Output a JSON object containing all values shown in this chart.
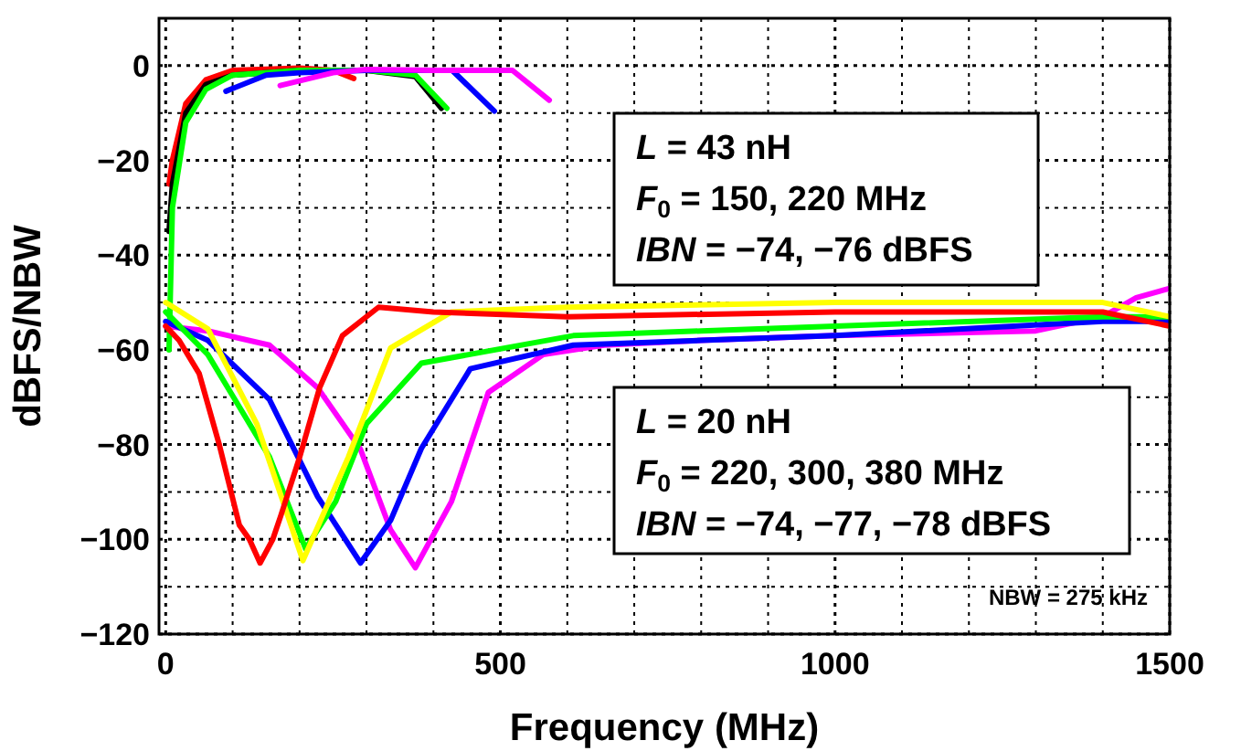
{
  "chart_data": {
    "type": "line",
    "xlabel": "Frequency (MHz)",
    "ylabel": "dBFS/NBW",
    "xlim": [
      -10,
      1500
    ],
    "ylim": [
      -120,
      10
    ],
    "xticks": [
      0,
      {
        "value": 100,
        "label": null
      },
      {
        "value": 200,
        "label": null
      },
      {
        "value": 300,
        "label": null
      },
      {
        "value": 400,
        "label": null
      },
      500,
      {
        "value": 600,
        "label": null
      },
      {
        "value": 700,
        "label": null
      },
      {
        "value": 800,
        "label": null
      },
      {
        "value": 900,
        "label": null
      },
      1000,
      {
        "value": 1100,
        "label": null
      },
      {
        "value": 1200,
        "label": null
      },
      {
        "value": 1300,
        "label": null
      },
      {
        "value": 1400,
        "label": null
      },
      1500
    ],
    "yticks": [
      -120,
      {
        "value": -110,
        "label": null
      },
      -100,
      {
        "value": -90,
        "label": null
      },
      -80,
      {
        "value": -70,
        "label": null
      },
      -60,
      {
        "value": -50,
        "label": null
      },
      -40,
      {
        "value": -30,
        "label": null
      },
      -20,
      {
        "value": -10,
        "label": null
      },
      0
    ],
    "grid": true,
    "line_style": "solid",
    "marker": "none",
    "series": [
      {
        "color": "#ff0000",
        "x": [
          5,
          10,
          30,
          60,
          100,
          200,
          250,
          281
        ],
        "values": [
          -25,
          -20,
          -8,
          -3,
          -1,
          -0.5,
          -1,
          -2.7
        ]
      },
      {
        "color": "#000000",
        "x": [
          5,
          10,
          30,
          60,
          100,
          200,
          300,
          373,
          412
        ],
        "values": [
          -35,
          -25,
          -10,
          -4,
          -2,
          -1,
          -1,
          -2.3,
          -9
        ]
      },
      {
        "color": "#00ff00",
        "x": [
          5,
          10,
          30,
          60,
          100,
          200,
          300,
          373,
          420
        ],
        "values": [
          -60,
          -30,
          -12,
          -5,
          -2,
          -1,
          -1,
          -2,
          -9
        ]
      },
      {
        "color": "#0000ff",
        "x": [
          90,
          150,
          200,
          300,
          428,
          491
        ],
        "values": [
          -5.4,
          -2,
          -1.5,
          -1,
          -1,
          -9.6
        ]
      },
      {
        "color": "#ff00ff",
        "x": [
          171,
          250,
          300,
          400,
          518,
          573
        ],
        "values": [
          -4.2,
          -1.5,
          -0.8,
          -1,
          -1,
          -7.3
        ]
      },
      {
        "color": "#ff00ff",
        "x": [
          0,
          63,
          155,
          227,
          291,
          336,
          373,
          427,
          482,
          564,
          655,
          800,
          1000,
          1300,
          1400,
          1450,
          1500
        ],
        "values": [
          -55,
          -56,
          -59,
          -68,
          -81,
          -98,
          -106,
          -92,
          -69,
          -61,
          -59,
          -58,
          -57,
          -56,
          -53,
          -49,
          -47
        ]
      },
      {
        "color": "#0000ff",
        "x": [
          0,
          63,
          155,
          227,
          291,
          336,
          382,
          455,
          609,
          800,
          1000,
          1400,
          1500
        ],
        "values": [
          -54,
          -58,
          -70.5,
          -91,
          -105,
          -96,
          -80.8,
          -64,
          -59,
          -58,
          -57,
          -54,
          -54
        ]
      },
      {
        "color": "#00ff00",
        "x": [
          0,
          63,
          155,
          209,
          254,
          300,
          382,
          609,
          800,
          1000,
          1400,
          1500
        ],
        "values": [
          -52,
          -61,
          -82.6,
          -102,
          -92,
          -75.6,
          -62.8,
          -57,
          -56,
          -55,
          -53,
          -53
        ]
      },
      {
        "color": "#ffff00",
        "x": [
          0,
          63,
          136,
          205,
          273,
          336,
          427,
          600,
          1000,
          1400,
          1500
        ],
        "values": [
          -50,
          -55.6,
          -75.6,
          -104.5,
          -82.6,
          -59.6,
          -52,
          -51,
          -50,
          -50,
          -53
        ]
      },
      {
        "color": "#ff0000",
        "x": [
          0,
          20,
          50,
          80,
          110,
          125,
          141,
          160,
          172,
          200,
          230,
          264,
          318,
          400,
          600,
          1000,
          1400,
          1500
        ],
        "values": [
          -55,
          -58,
          -65,
          -80,
          -97,
          -100,
          -105,
          -100,
          -95,
          -82.7,
          -68,
          -57,
          -51,
          -52,
          -53,
          -52,
          -52,
          -55
        ]
      }
    ],
    "annotations": [
      "L = 43 nH\nF$_{0}$ = 150, 220 MHz\nIBN = −74, −76 dBFS",
      "L = 20 nH\nF$_{0}$ = 220, 300, 380 MHz\nIBN = −74, −77, −78 dBFS",
      "NBW = 275 kHz"
    ]
  }
}
